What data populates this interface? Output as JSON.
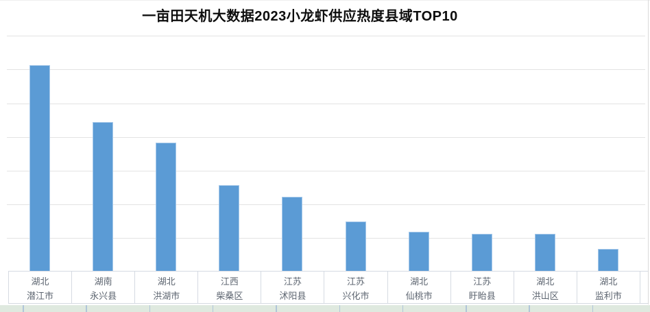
{
  "chart": {
    "title": "一亩田天机大数据2023小龙虾供应热度县域TOP10",
    "title_color": "#0d0d0d",
    "bar_color": "#5b9bd5",
    "bar_edge_color": "#a7c9ea",
    "gridline_color": "#e3e3e3",
    "axis_border_color": "#d5dae2",
    "label_color": "#5d6570",
    "sheet_strip_color": "#dfe9df",
    "sheet_strip_line_color": "#b0c5d8",
    "background": "#ffffff"
  },
  "chart_data": {
    "type": "bar",
    "title": "一亩田天机大数据2023小龙虾供应热度县域TOP10",
    "categories": [
      "湖北 潜江市",
      "湖南 永兴县",
      "湖北 洪湖市",
      "江西 柴桑区",
      "江苏 沭阳县",
      "江苏 兴化市",
      "湖北 仙桃市",
      "江苏 盱眙县",
      "湖北 洪山区",
      "湖北 监利市"
    ],
    "category_lines": [
      [
        "湖北",
        "潜江市"
      ],
      [
        "湖南",
        "永兴县"
      ],
      [
        "湖北",
        "洪湖市"
      ],
      [
        "江西",
        "柴桑区"
      ],
      [
        "江苏",
        "沭阳县"
      ],
      [
        "江苏",
        "兴化市"
      ],
      [
        "湖北",
        "仙桃市"
      ],
      [
        "江苏",
        "盱眙县"
      ],
      [
        "湖北",
        "洪山区"
      ],
      [
        "湖北",
        "监利市"
      ]
    ],
    "values": [
      6.14,
      4.45,
      3.82,
      2.56,
      2.21,
      1.48,
      1.19,
      1.13,
      1.11,
      0.68
    ],
    "value_note": "y-axis tick labels are not visible in the image; values estimated in gridline units (1 unit = one horizontal gridline interval)",
    "ylim": [
      0,
      7
    ],
    "gridline_count": 7,
    "grid": true,
    "legend": false,
    "xlabel": "",
    "ylabel": ""
  }
}
